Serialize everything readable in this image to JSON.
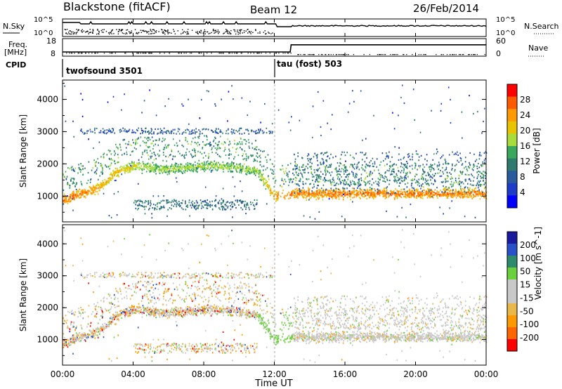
{
  "header": {
    "station": "Blackstone (fitACF)",
    "beam": "Beam 12",
    "date": "26/Feb/2014"
  },
  "noise_panel": {
    "left_label": "N.Sky",
    "left_ticks": [
      "10^5",
      "10^0"
    ],
    "right_ticks": [
      "10^5",
      "10^0"
    ],
    "right_label": "N.Search"
  },
  "freq_panel": {
    "left_label_top": "Freq.",
    "left_label_bottom": "[MHz]",
    "left_ticks": [
      "18",
      "8"
    ],
    "right_ticks": [
      "60",
      "0"
    ],
    "right_label": "Nave",
    "cpid_label": "CPID",
    "freq_values_mhz": [
      10.4,
      10.4,
      10.4,
      10.4,
      10.4,
      10.4,
      10.4,
      10.4,
      10.4,
      10.4,
      10.4,
      10.4,
      10.4,
      14.5,
      14.5,
      14.5,
      14.5,
      14.5,
      14.5,
      14.5,
      14.5,
      14.5,
      14.5,
      14.5,
      14.5
    ],
    "freq_hours": [
      0,
      1,
      2,
      3,
      4,
      5,
      6,
      7,
      8,
      9,
      10,
      11,
      12.9,
      12.95,
      14,
      15,
      16,
      17,
      18,
      19,
      20,
      21,
      22,
      23,
      24
    ]
  },
  "modes": [
    {
      "name": "twofsound 3501",
      "start_hour": 0
    },
    {
      "name": "tau (fost) 503",
      "start_hour": 12
    }
  ],
  "chart_data": [
    {
      "type": "heatmap",
      "title": "Power",
      "ylabel": "Slant Range [km]",
      "xlabel": "Time UT",
      "xlim": [
        0,
        24
      ],
      "ylim": [
        200,
        4600
      ],
      "xticks": [
        "00:00",
        "04:00",
        "08:00",
        "12:00",
        "16:00",
        "20:00",
        "00:00"
      ],
      "yticks": [
        1000,
        2000,
        3000,
        4000
      ],
      "colorbar_label": "Power [dB]",
      "colorbar_ticks": [
        "28",
        "24",
        "20",
        "16",
        "12",
        "8",
        "4"
      ],
      "colorbar_colors": [
        "#ff0000",
        "#ff5a00",
        "#ff9900",
        "#e8c400",
        "#a8dc3c",
        "#3aa85c",
        "#2e7a6e",
        "#2a5a9e",
        "#1f3cc8",
        "#0000ff"
      ],
      "echo_bands_km": {
        "hours": [
          0,
          1,
          2,
          3,
          4,
          5,
          6,
          7,
          8,
          9,
          10,
          11,
          12,
          13,
          16,
          20,
          24
        ],
        "main_center": [
          900,
          1100,
          1250,
          1750,
          1950,
          1900,
          1850,
          1900,
          1950,
          1950,
          1900,
          1800,
          1000,
          1100,
          1100,
          1100,
          1100
        ],
        "main_power_db": [
          26,
          26,
          24,
          22,
          20,
          18,
          18,
          18,
          18,
          18,
          18,
          18,
          24,
          26,
          26,
          26,
          26
        ]
      }
    },
    {
      "type": "heatmap",
      "title": "Velocity",
      "ylabel": "Slant Range [km]",
      "xlabel": "Time UT",
      "xlim": [
        0,
        24
      ],
      "ylim": [
        200,
        4600
      ],
      "xticks": [
        "00:00",
        "04:00",
        "08:00",
        "12:00",
        "16:00",
        "20:00",
        "00:00"
      ],
      "yticks": [
        1000,
        2000,
        3000,
        4000
      ],
      "colorbar_label": "Velocity [m s^-1]",
      "colorbar_ticks": [
        "200",
        "100",
        "50",
        "15",
        "-15",
        "-50",
        "-100",
        "-200"
      ],
      "colorbar_colors": [
        "#1a1aa0",
        "#2850c8",
        "#2e8a6c",
        "#6ad03c",
        "#c8c8c8",
        "#c8c8c8",
        "#e8b84a",
        "#ff9900",
        "#ff6600",
        "#ff0000"
      ]
    }
  ],
  "xaxis": {
    "label": "Time UT",
    "ticks": [
      "00:00",
      "04:00",
      "08:00",
      "12:00",
      "16:00",
      "20:00",
      "00:00"
    ]
  }
}
